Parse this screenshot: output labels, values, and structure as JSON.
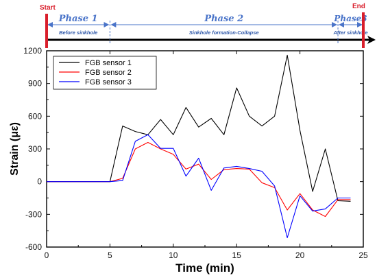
{
  "timeline": {
    "start_label": "Start",
    "end_label": "End",
    "marker_color": "#d91e2b",
    "arrow_color": "#4a74c9",
    "phases": [
      {
        "title": "Phase 1",
        "subtitle": "Before sinkhole",
        "from": 0,
        "to": 5
      },
      {
        "title": "Phase 2",
        "subtitle": "Sinkhole formation-Collapse",
        "from": 5,
        "to": 23
      },
      {
        "title": "Phase3",
        "subtitle": "After sinkhole",
        "from": 23,
        "to": 25
      }
    ]
  },
  "chart_data": {
    "type": "line",
    "xlabel": "Time (min)",
    "ylabel": "Strain (με)",
    "xlim": [
      0,
      25
    ],
    "ylim": [
      -600,
      1200
    ],
    "xticks": [
      0,
      5,
      10,
      15,
      20,
      25
    ],
    "yticks": [
      -600,
      -300,
      0,
      300,
      600,
      900,
      1200
    ],
    "grid": false,
    "legend_position": "top-left",
    "series": [
      {
        "name": "FGB sensor 1",
        "color": "#000000",
        "x": [
          0,
          1,
          2,
          3,
          4,
          5,
          6,
          7,
          8,
          9,
          10,
          11,
          12,
          13,
          14,
          15,
          16,
          17,
          18,
          19,
          20,
          21,
          22,
          23,
          24
        ],
        "y": [
          0,
          0,
          0,
          0,
          0,
          0,
          510,
          460,
          430,
          570,
          430,
          680,
          500,
          580,
          430,
          860,
          600,
          510,
          600,
          1160,
          470,
          -90,
          300,
          -175,
          -180
        ]
      },
      {
        "name": "FGB sensor 2",
        "color": "#ff0000",
        "x": [
          0,
          1,
          2,
          3,
          4,
          5,
          6,
          7,
          8,
          9,
          10,
          11,
          12,
          13,
          14,
          15,
          16,
          17,
          18,
          19,
          20,
          21,
          22,
          23,
          24
        ],
        "y": [
          0,
          0,
          0,
          0,
          0,
          0,
          30,
          300,
          360,
          300,
          250,
          115,
          160,
          20,
          110,
          120,
          115,
          -10,
          -55,
          -260,
          -110,
          -260,
          -320,
          -165,
          -165
        ]
      },
      {
        "name": "FGB sensor 3",
        "color": "#0000ff",
        "x": [
          0,
          1,
          2,
          3,
          4,
          5,
          6,
          7,
          8,
          9,
          10,
          11,
          12,
          13,
          14,
          15,
          16,
          17,
          18,
          19,
          20,
          21,
          22,
          23,
          24
        ],
        "y": [
          0,
          0,
          0,
          0,
          0,
          0,
          10,
          370,
          430,
          305,
          305,
          50,
          215,
          -80,
          125,
          140,
          120,
          95,
          -40,
          -515,
          -130,
          -270,
          -250,
          -150,
          -150
        ]
      }
    ]
  }
}
